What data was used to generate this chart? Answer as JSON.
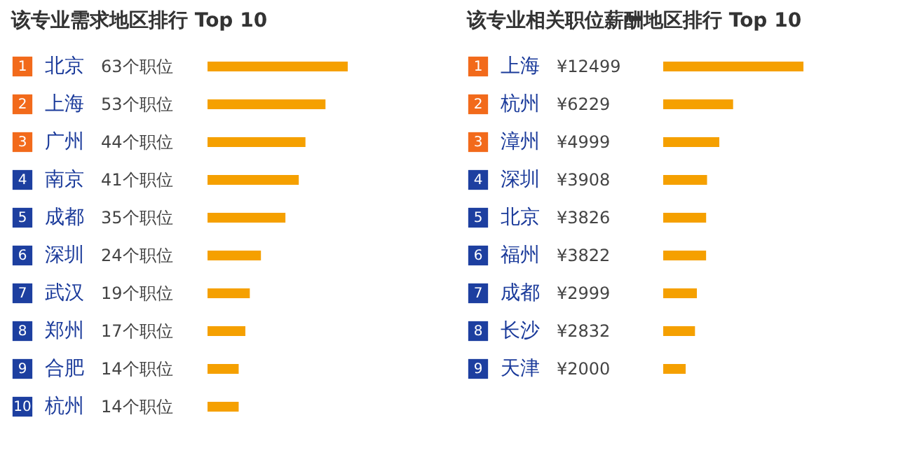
{
  "chart_data": [
    {
      "type": "bar",
      "orientation": "horizontal",
      "title": "该专业需求地区排行  Top 10",
      "color": "#f5a000",
      "categories": [
        "北京",
        "上海",
        "广州",
        "南京",
        "成都",
        "深圳",
        "武汉",
        "郑州",
        "合肥",
        "杭州"
      ],
      "values": [
        63,
        53,
        44,
        41,
        35,
        24,
        19,
        17,
        14,
        14
      ],
      "value_labels": [
        "63个职位",
        "53个职位",
        "44个职位",
        "41个职位",
        "35个职位",
        "24个职位",
        "19个职位",
        "17个职位",
        "14个职位",
        "14个职位"
      ],
      "annotations": [
        "1",
        "2",
        "3",
        "4",
        "5",
        "6",
        "7",
        "8",
        "9",
        "10"
      ]
    },
    {
      "type": "bar",
      "orientation": "horizontal",
      "title": "该专业相关职位薪酬地区排行  Top 10",
      "color": "#f5a000",
      "categories": [
        "上海",
        "杭州",
        "漳州",
        "深圳",
        "北京",
        "福州",
        "成都",
        "长沙",
        "天津"
      ],
      "values": [
        12499,
        6229,
        4999,
        3908,
        3826,
        3822,
        2999,
        2832,
        2000
      ],
      "value_labels": [
        "¥12499",
        "¥6229",
        "¥4999",
        "¥3908",
        "¥3826",
        "¥3822",
        "¥2999",
        "¥2832",
        "¥2000"
      ],
      "annotations": [
        "1",
        "2",
        "3",
        "4",
        "5",
        "6",
        "7",
        "8",
        "9"
      ]
    }
  ]
}
